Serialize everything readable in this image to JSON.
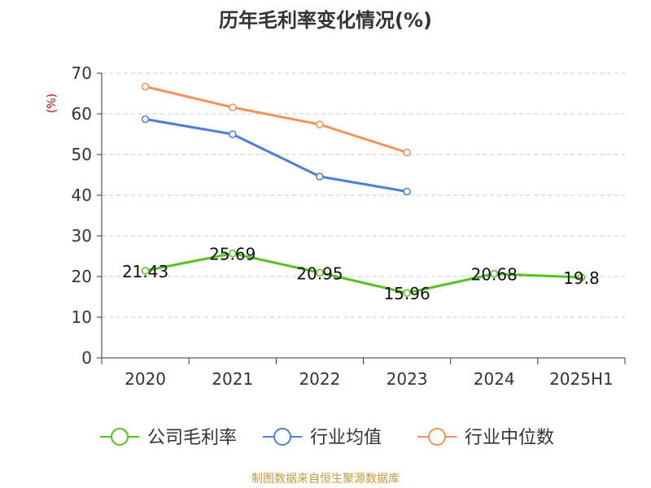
{
  "chart_data": {
    "type": "line",
    "title": "历年毛利率变化情况(%)",
    "ylabel": "(%)",
    "xlabel": "",
    "categories": [
      "2020",
      "2021",
      "2022",
      "2023",
      "2024",
      "2025H1"
    ],
    "ylim": [
      0,
      70
    ],
    "yticks": [
      0,
      10,
      20,
      30,
      40,
      50,
      60,
      70
    ],
    "grid": true,
    "legend_position": "bottom",
    "series": [
      {
        "name": "公司毛利率",
        "color": "#52c41a",
        "values": [
          21.43,
          25.69,
          20.95,
          15.96,
          20.68,
          19.8
        ],
        "labels": [
          "21.43",
          "25.69",
          "20.95",
          "15.96",
          "20.68",
          "19.8"
        ],
        "show_labels": true
      },
      {
        "name": "行业均值",
        "color": "#4a7fdc",
        "values": [
          58.7,
          55.0,
          44.6,
          40.9,
          null,
          null
        ],
        "show_labels": false
      },
      {
        "name": "行业中位数",
        "color": "#f79257",
        "values": [
          66.7,
          61.6,
          57.4,
          50.5,
          null,
          null
        ],
        "show_labels": false
      }
    ]
  },
  "source": "制图数据来自恒生聚源数据库",
  "colors": {
    "axis": "#333333",
    "grid": "#c8c8c8",
    "ylabel": "#cc0000",
    "source": "#c79a3a",
    "title": "#333333"
  }
}
